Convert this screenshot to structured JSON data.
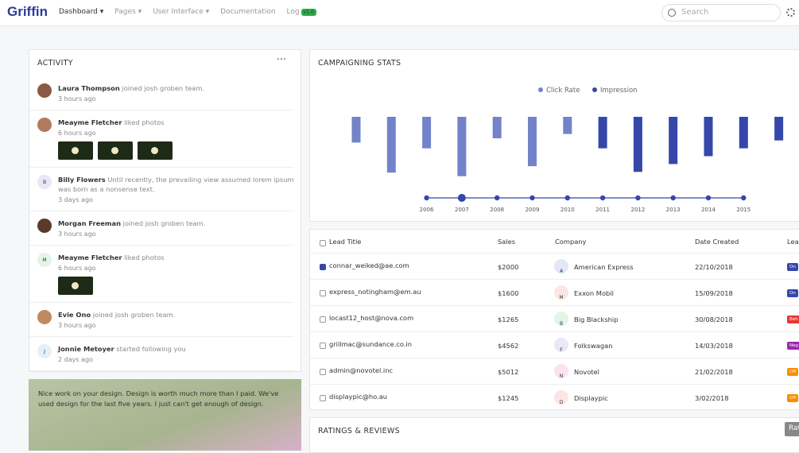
{
  "nav": {
    "brand": "Griffin",
    "items": [
      "Dashboard",
      "Pages",
      "User Interface",
      "Documentation",
      "Log"
    ],
    "badge": "v1.0",
    "search": "Search"
  },
  "activity": {
    "title": "ACTIVITY",
    "items": [
      {
        "name": "Laura Thompson",
        "action": "joined josh groben team.",
        "time": "3 hours ago"
      },
      {
        "name": "Meayme Fletcher",
        "action": "liked photos",
        "time": "6 hours ago"
      },
      {
        "initial": "B",
        "name": "Billy Flowers",
        "action": "Until recently, the prevailing view assumed lorem ipsum was born as a nonsense text.",
        "time": "3 days ago"
      },
      {
        "name": "Morgan Freeman",
        "action": "joined josh groben team.",
        "time": "3 hours ago"
      },
      {
        "initial": "M",
        "name": "Meayme Fletcher",
        "action": "liked photos",
        "time": "6 hours ago"
      },
      {
        "name": "Evie Ono",
        "action": "joined josh groben team.",
        "time": "3 hours ago"
      },
      {
        "initial": "J",
        "name": "Jonnie Metoyer",
        "action": "started following you",
        "time": "2 days ago"
      }
    ]
  },
  "quote": {
    "text": "Nice work on your design. Design is worth much more than I paid. We've used design for the last five years. I just can't get enough of design."
  },
  "campaign": {
    "title": "CAMPAIGNING STATS",
    "chart_data": {
      "type": "bar",
      "categories": [
        null,
        null,
        "2006",
        "2007",
        "2008",
        "2009",
        "2010",
        "2011",
        "2012",
        "2013",
        "2014",
        "2015",
        null
      ],
      "ylim": [
        0,
        100
      ],
      "series": [
        {
          "name": "Click Rate",
          "color": "#7383c9",
          "values": [
            36,
            78,
            44,
            83,
            30,
            69,
            24,
            null,
            null,
            null,
            null,
            null,
            null
          ]
        },
        {
          "name": "Impression",
          "color": "#3547a8",
          "values": [
            null,
            null,
            null,
            null,
            null,
            null,
            null,
            44,
            77,
            66,
            55,
            44,
            33
          ]
        }
      ]
    }
  },
  "table": {
    "headers": [
      "Lead Title",
      "Sales",
      "Company",
      "Date Created",
      "Lea"
    ],
    "rows": [
      {
        "email": "connar_weiked@ae.com",
        "sales": "$2000",
        "initial": "A",
        "company": "American Express",
        "date": "22/10/2018",
        "status": "On"
      },
      {
        "email": "express_notingham@em.au",
        "sales": "$1600",
        "initial": "M",
        "company": "Exxon Mobil",
        "date": "15/09/2018",
        "status": "On"
      },
      {
        "email": "locast12_host@nova.com",
        "sales": "$1265",
        "initial": "B",
        "company": "Big Blackship",
        "date": "30/08/2018",
        "status": "Beh"
      },
      {
        "email": "grillmac@sundance.co.in",
        "sales": "$4562",
        "initial": "F",
        "company": "Folkswagan",
        "date": "14/03/2018",
        "status": "Neg"
      },
      {
        "email": "admin@novotel.inc",
        "sales": "$5012",
        "initial": "N",
        "company": "Novotel",
        "date": "21/02/2018",
        "status": "Off"
      },
      {
        "email": "displaypic@ho.au",
        "sales": "$1245",
        "initial": "D",
        "company": "Displaypic",
        "date": "3/02/2018",
        "status": "Off"
      }
    ]
  },
  "ratings": {
    "title": "RATINGS & REVIEWS",
    "button": "Rat"
  }
}
